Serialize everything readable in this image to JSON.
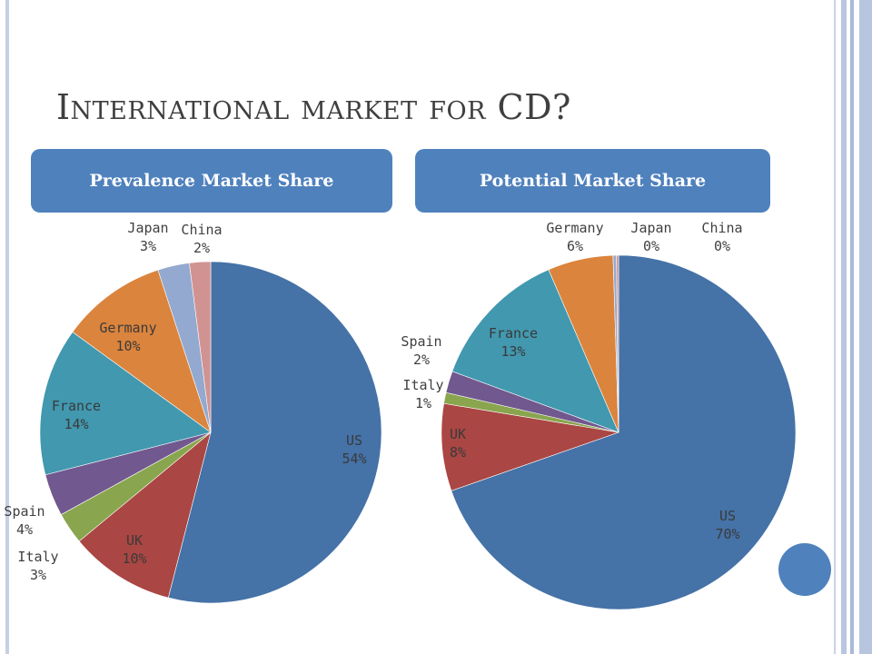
{
  "slide": {
    "title": "International market for CD?",
    "colors": {
      "accent": "#4f81bd",
      "frame": "#b7c5df"
    }
  },
  "chart_data": [
    {
      "type": "pie",
      "title": "Prevalence Market Share",
      "categories": [
        "US",
        "UK",
        "Italy",
        "Spain",
        "France",
        "Germany",
        "Japan",
        "China"
      ],
      "values": [
        54,
        10,
        3,
        4,
        14,
        10,
        3,
        2
      ],
      "labels": [
        "54%",
        "10%",
        "3%",
        "4%",
        "14%",
        "10%",
        "3%",
        "2%"
      ],
      "colors": [
        "#4572a7",
        "#aa4643",
        "#89a54e",
        "#71588f",
        "#4198af",
        "#db843d",
        "#93a9cf",
        "#d19392"
      ]
    },
    {
      "type": "pie",
      "title": "Potential Market Share",
      "categories": [
        "US",
        "UK",
        "Italy",
        "Spain",
        "France",
        "Germany",
        "Japan",
        "China"
      ],
      "values": [
        70,
        8,
        1,
        2,
        13,
        6,
        0.3,
        0.2
      ],
      "labels": [
        "70%",
        "8%",
        "1%",
        "2%",
        "13%",
        "6%",
        "0%",
        "0%"
      ],
      "colors": [
        "#4572a7",
        "#aa4643",
        "#89a54e",
        "#71588f",
        "#4198af",
        "#db843d",
        "#93a9cf",
        "#d19392"
      ]
    }
  ]
}
